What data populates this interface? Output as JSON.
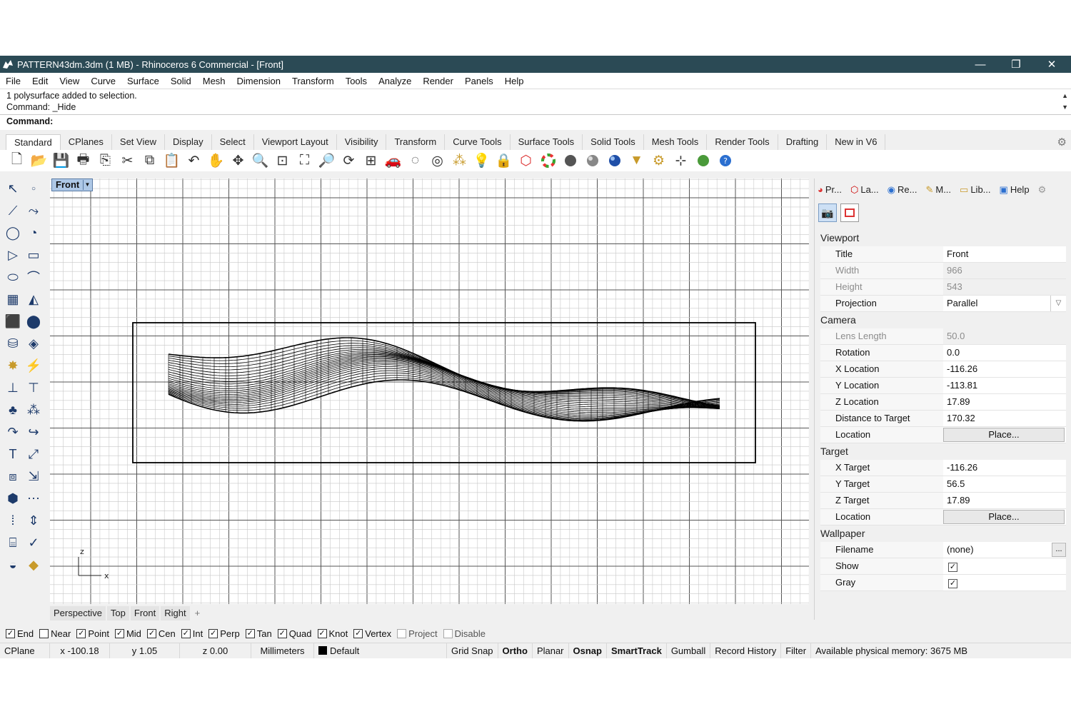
{
  "title": "PATTERN43dm.3dm (1 MB) - Rhinoceros 6 Commercial - [Front]",
  "window_controls": {
    "minimize": "—",
    "restore": "❐",
    "close": "✕"
  },
  "menu": [
    "File",
    "Edit",
    "View",
    "Curve",
    "Surface",
    "Solid",
    "Mesh",
    "Dimension",
    "Transform",
    "Tools",
    "Analyze",
    "Render",
    "Panels",
    "Help"
  ],
  "command": {
    "history1": "1 polysurface added to selection.",
    "history2": "Command: _Hide",
    "prompt": "Command:"
  },
  "toolbar_tabs": [
    "Standard",
    "CPlanes",
    "Set View",
    "Display",
    "Select",
    "Viewport Layout",
    "Visibility",
    "Transform",
    "Curve Tools",
    "Surface Tools",
    "Solid Tools",
    "Mesh Tools",
    "Render Tools",
    "Drafting",
    "New in V6"
  ],
  "toolbar_icons": [
    "new-file-icon",
    "open-file-icon",
    "save-icon",
    "print-icon",
    "import-icon",
    "cut-icon",
    "copy-icon",
    "paste-icon",
    "undo-icon",
    "pan-icon",
    "move-view-icon",
    "zoom-icon",
    "zoom-window-icon",
    "zoom-extents-icon",
    "zoom-selected-icon",
    "rotate-view-icon",
    "four-viewports-icon",
    "car-icon",
    "hide-icon",
    "show-icon",
    "points-icon",
    "lightbulb-icon",
    "lock-icon",
    "layer-icon",
    "color-wheel-icon",
    "shaded-icon",
    "rendered-icon",
    "render-sphere-icon",
    "filter-icon",
    "options-icon",
    "grid-snap-icon",
    "globe-icon",
    "help-icon"
  ],
  "viewport": {
    "active_label": "Front",
    "axis_z": "z",
    "axis_x": "x",
    "tabs": [
      "Perspective",
      "Top",
      "Front",
      "Right"
    ],
    "add_tab": "+"
  },
  "panel": {
    "tabs": [
      "Pr...",
      "La...",
      "Re...",
      "M...",
      "Lib...",
      "Help"
    ],
    "viewport_section": "Viewport",
    "title_label": "Title",
    "title_value": "Front",
    "width_label": "Width",
    "width_value": "966",
    "height_label": "Height",
    "height_value": "543",
    "projection_label": "Projection",
    "projection_value": "Parallel",
    "camera_section": "Camera",
    "lens_label": "Lens Length",
    "lens_value": "50.0",
    "rotation_label": "Rotation",
    "rotation_value": "0.0",
    "xloc_label": "X Location",
    "xloc_value": "-116.26",
    "yloc_label": "Y Location",
    "yloc_value": "-113.81",
    "zloc_label": "Z Location",
    "zloc_value": "17.89",
    "dist_label": "Distance to Target",
    "dist_value": "170.32",
    "cam_location_label": "Location",
    "place_button": "Place...",
    "target_section": "Target",
    "xt_label": "X Target",
    "xt_value": "-116.26",
    "yt_label": "Y Target",
    "yt_value": "56.5",
    "zt_label": "Z Target",
    "zt_value": "17.89",
    "tgt_location_label": "Location",
    "wallpaper_section": "Wallpaper",
    "filename_label": "Filename",
    "filename_value": "(none)",
    "browse_button": "...",
    "show_label": "Show",
    "gray_label": "Gray"
  },
  "osnaps": [
    {
      "label": "End",
      "checked": true
    },
    {
      "label": "Near",
      "checked": false
    },
    {
      "label": "Point",
      "checked": true
    },
    {
      "label": "Mid",
      "checked": true
    },
    {
      "label": "Cen",
      "checked": true
    },
    {
      "label": "Int",
      "checked": true
    },
    {
      "label": "Perp",
      "checked": true
    },
    {
      "label": "Tan",
      "checked": true
    },
    {
      "label": "Quad",
      "checked": true
    },
    {
      "label": "Knot",
      "checked": true
    },
    {
      "label": "Vertex",
      "checked": true
    },
    {
      "label": "Project",
      "checked": false
    },
    {
      "label": "Disable",
      "checked": false
    }
  ],
  "status": {
    "cplane": "CPlane",
    "x": "x -100.18",
    "y": "y 1.05",
    "z": "z 0.00",
    "units": "Millimeters",
    "layer": "Default",
    "grid_snap": "Grid Snap",
    "ortho": "Ortho",
    "planar": "Planar",
    "osnap": "Osnap",
    "smarttrack": "SmartTrack",
    "gumball": "Gumball",
    "record_history": "Record History",
    "filter": "Filter",
    "memory": "Available physical memory: 3675 MB"
  }
}
